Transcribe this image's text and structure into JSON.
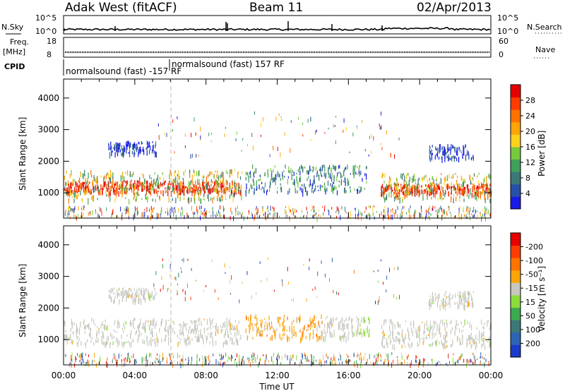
{
  "header": {
    "station": "Adak West (fitACF)",
    "beam": "Beam 11",
    "date": "02/Apr/2013"
  },
  "strips": {
    "nsky_label": "N.Sky",
    "nsky_ticks": [
      "10^5",
      "10^0"
    ],
    "nsearch_label": "N.Search",
    "nsearch_ticks": [
      "10^5",
      "10^0"
    ],
    "freq_label": "Freq.",
    "freq_unit": "[MHz]",
    "freq_ticks": [
      "18",
      "8"
    ],
    "nave_label": "Nave",
    "nave_ticks": [
      "60",
      "0"
    ],
    "cpid_label": "CPID",
    "cpid_segments": [
      "normalsound (fast) -157 RF",
      "normalsound (fast) 157 RF"
    ]
  },
  "chart_data": [
    {
      "type": "heatmap",
      "name": "power",
      "ylabel": "Slant Range [km]",
      "yticks": [
        "1000",
        "2000",
        "3000",
        "4000"
      ],
      "ylim": [
        200,
        4600
      ],
      "xlim_hours": [
        0,
        24
      ],
      "colorbar_label": "Power [dB]",
      "colorbar_ticks": [
        "4",
        "8",
        "12",
        "16",
        "20",
        "24",
        "28"
      ],
      "colorbar_colors": [
        "#1a1ae6",
        "#2850a8",
        "#3c7878",
        "#3fa05a",
        "#78c83c",
        "#ffd21e",
        "#ffa50a",
        "#ff7300",
        "#ff3c00",
        "#e60000"
      ],
      "bands": [
        {
          "t0": 0.0,
          "t1": 10.0,
          "r0": 1050,
          "r1": 1400,
          "level": "high"
        },
        {
          "t0": 0.0,
          "t1": 10.0,
          "r0": 800,
          "r1": 1750,
          "level": "mid"
        },
        {
          "t0": 2.5,
          "t1": 5.2,
          "r0": 2250,
          "r1": 2650,
          "level": "low"
        },
        {
          "t0": 10.2,
          "t1": 17.0,
          "r0": 1050,
          "r1": 1900,
          "level": "midlow"
        },
        {
          "t0": 17.8,
          "t1": 24.0,
          "r0": 1000,
          "r1": 1300,
          "level": "high"
        },
        {
          "t0": 17.8,
          "t1": 24.0,
          "r0": 800,
          "r1": 1650,
          "level": "mid"
        },
        {
          "t0": 20.5,
          "t1": 23.0,
          "r0": 2100,
          "r1": 2550,
          "level": "low"
        }
      ]
    },
    {
      "type": "heatmap",
      "name": "velocity",
      "ylabel": "Slant Range [km]",
      "yticks": [
        "1000",
        "2000",
        "3000",
        "4000"
      ],
      "ylim": [
        200,
        4600
      ],
      "xlim_hours": [
        0,
        24
      ],
      "xticks": [
        "00:00",
        "04:00",
        "08:00",
        "12:00",
        "16:00",
        "20:00",
        "00:00"
      ],
      "xlabel": "Time UT",
      "colorbar_label": "Velocity [m s⁻¹]",
      "colorbar_ticks": [
        "200",
        "100",
        "50",
        "15",
        "-15",
        "-50",
        "-100",
        "-200"
      ],
      "colorbar_colors": [
        "#1a3cc8",
        "#2d64b4",
        "#3c7878",
        "#3caa50",
        "#8cdc3c",
        "#c8c8c0",
        "#ffa50a",
        "#ff7300",
        "#ff3c00",
        "#e60000"
      ],
      "bands": [
        {
          "t0": 0.0,
          "t1": 10.0,
          "r0": 900,
          "r1": 1700,
          "level": "gray"
        },
        {
          "t0": 2.5,
          "t1": 5.2,
          "r0": 2250,
          "r1": 2650,
          "level": "gray"
        },
        {
          "t0": 10.2,
          "t1": 14.5,
          "r0": 1050,
          "r1": 1800,
          "level": "orange"
        },
        {
          "t0": 14.5,
          "t1": 16.6,
          "r0": 1100,
          "r1": 1750,
          "level": "gray"
        },
        {
          "t0": 16.6,
          "t1": 17.2,
          "r0": 1200,
          "r1": 1750,
          "level": "green"
        },
        {
          "t0": 17.8,
          "t1": 24.0,
          "r0": 800,
          "r1": 1650,
          "level": "gray"
        },
        {
          "t0": 20.5,
          "t1": 23.0,
          "r0": 2100,
          "r1": 2550,
          "level": "gray"
        }
      ]
    }
  ]
}
